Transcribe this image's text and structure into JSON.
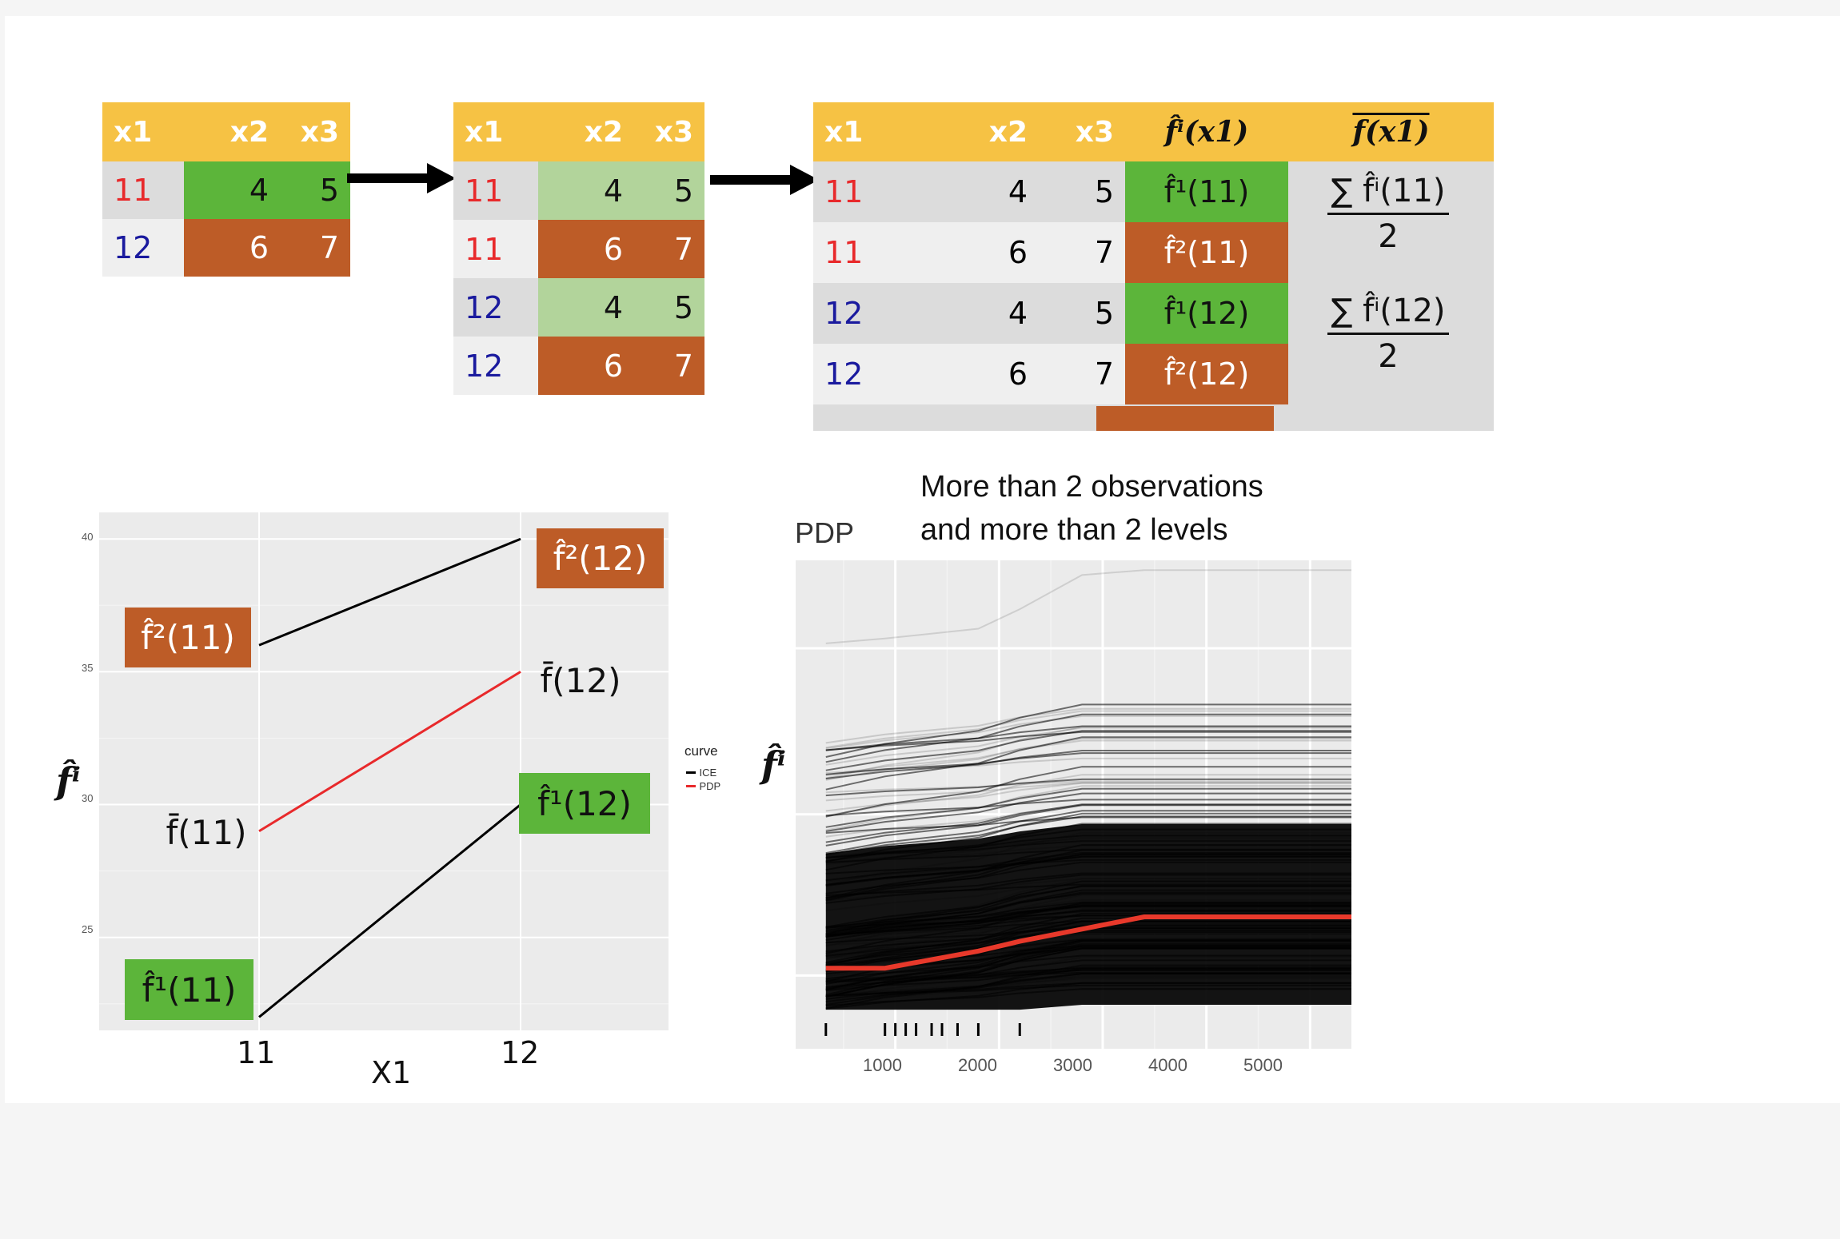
{
  "colors": {
    "header": "#f6c244",
    "green": "#5cb53a",
    "light_green": "#b2d49b",
    "orange": "#bd5c27",
    "red": "#e8292b",
    "blue": "#1a1a9e",
    "panel": "#ebebeb"
  },
  "table1": {
    "headers": [
      "x1",
      "x2",
      "x3"
    ],
    "rows": [
      {
        "x1": "11",
        "x2": "4",
        "x3": "5"
      },
      {
        "x1": "12",
        "x2": "6",
        "x3": "7"
      }
    ]
  },
  "table2": {
    "headers": [
      "x1",
      "x2",
      "x3"
    ],
    "rows": [
      {
        "x1": "11",
        "x2": "4",
        "x3": "5"
      },
      {
        "x1": "11",
        "x2": "6",
        "x3": "7"
      },
      {
        "x1": "12",
        "x2": "4",
        "x3": "5"
      },
      {
        "x1": "12",
        "x2": "6",
        "x3": "7"
      }
    ]
  },
  "table3": {
    "headers": [
      "x1",
      "x2",
      "x3",
      "f̂ⁱ(x1)",
      "f(x1)"
    ],
    "rows": [
      {
        "x1": "11",
        "x2": "4",
        "x3": "5",
        "f": "f̂¹(11)"
      },
      {
        "x1": "11",
        "x2": "6",
        "x3": "7",
        "f": "f̂²(11)"
      },
      {
        "x1": "12",
        "x2": "4",
        "x3": "5",
        "f": "f̂¹(12)"
      },
      {
        "x1": "12",
        "x2": "6",
        "x3": "7",
        "f": "f̂²(12)"
      }
    ],
    "avg": [
      {
        "num": "∑ f̂ⁱ(11)",
        "den": "2"
      },
      {
        "num": "∑ f̂ⁱ(12)",
        "den": "2"
      }
    ]
  },
  "left_plot": {
    "y_label": "f̂ⁱ",
    "x_title": "X1",
    "x_ticks": [
      "11",
      "12"
    ],
    "y_ticks": [
      "40",
      "35",
      "30",
      "25"
    ],
    "legend_title": "curve",
    "legend": [
      {
        "name": "ICE",
        "color": "#000000"
      },
      {
        "name": "PDP",
        "color": "#e8292b"
      }
    ],
    "labels": {
      "f2_11": "f̂²(11)",
      "f2_12": "f̂²(12)",
      "fbar_11": "f̄(11)",
      "fbar_12": "f̄(12)",
      "f1_11": "f̂¹(11)",
      "f1_12": "f̂¹(12)"
    }
  },
  "chart_data": [
    {
      "type": "line",
      "x_title": "X1",
      "x": [
        11,
        12
      ],
      "series": [
        {
          "name": "ICE",
          "values": [
            36,
            40
          ]
        },
        {
          "name": "ICE",
          "values": [
            22,
            30
          ]
        },
        {
          "name": "PDP",
          "values": [
            29,
            35
          ]
        }
      ],
      "ylim": [
        21.5,
        41
      ],
      "legend_title": "curve"
    },
    {
      "type": "line",
      "title": "PDP",
      "x_ticks": [
        "1000",
        "2000",
        "3000",
        "4000",
        "5000"
      ],
      "xlim": [
        0,
        6000
      ],
      "pdp_x": [
        330,
        900,
        1800,
        2200,
        2800,
        3400,
        5620
      ],
      "pdp_y": [
        0.165,
        0.165,
        0.2,
        0.22,
        0.245,
        0.27,
        0.27
      ]
    }
  ],
  "right_plot": {
    "title": "PDP",
    "y_label": "f̂ⁱ",
    "note_line1": "More than 2 observations",
    "note_line2": "and more than 2 levels",
    "x_ticks": [
      "1000",
      "2000",
      "3000",
      "4000",
      "5000"
    ]
  }
}
